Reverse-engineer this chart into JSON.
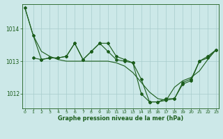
{
  "title": "Graphe pression niveau de la mer (hPa)",
  "background_color": "#cce8e8",
  "line_color": "#1a5c1a",
  "grid_color": "#a8cccc",
  "ylim": [
    1011.55,
    1014.75
  ],
  "yticks": [
    1012,
    1013,
    1014
  ],
  "xlim": [
    -0.3,
    23.3
  ],
  "xticks": [
    0,
    1,
    2,
    3,
    4,
    5,
    6,
    7,
    8,
    9,
    10,
    11,
    12,
    13,
    14,
    15,
    16,
    17,
    18,
    19,
    20,
    21,
    22,
    23
  ],
  "series1": {
    "x": [
      0,
      1,
      2,
      3,
      4,
      5,
      6,
      7,
      8,
      9,
      10,
      11,
      12,
      13,
      14,
      15,
      16,
      17,
      18,
      19,
      20,
      21,
      22,
      23
    ],
    "y": [
      1014.65,
      1013.8,
      1013.05,
      1013.1,
      1013.1,
      1013.15,
      1013.55,
      1013.05,
      1013.3,
      1013.55,
      1013.55,
      1013.15,
      1013.05,
      1012.95,
      1012.45,
      1011.75,
      1011.75,
      1011.8,
      1011.85,
      1012.3,
      1012.4,
      1013.0,
      1013.15,
      1013.35
    ]
  },
  "series2": {
    "x": [
      0,
      1,
      2,
      3,
      4,
      5,
      6,
      7,
      8,
      9,
      10,
      11,
      12,
      13,
      14,
      15,
      16,
      17,
      18,
      19,
      20,
      21,
      22,
      23
    ],
    "y": [
      1014.65,
      1013.8,
      1013.3,
      1013.15,
      1013.05,
      1013.0,
      1013.0,
      1013.0,
      1013.0,
      1013.0,
      1013.0,
      1012.95,
      1012.85,
      1012.65,
      1012.35,
      1012.05,
      1011.85,
      1011.8,
      1012.2,
      1012.4,
      1012.5,
      1012.7,
      1013.05,
      1013.35
    ]
  },
  "series3": {
    "x": [
      1,
      2,
      3,
      4,
      5,
      6,
      7,
      8,
      9,
      10,
      11,
      12,
      13,
      14,
      15,
      16,
      17,
      18,
      19,
      20,
      21,
      22,
      23
    ],
    "y": [
      1013.1,
      1013.05,
      1013.1,
      1013.1,
      1013.15,
      1013.55,
      1013.05,
      1013.3,
      1013.55,
      1013.3,
      1013.05,
      1013.0,
      1012.95,
      1012.0,
      1011.75,
      1011.75,
      1011.85,
      1011.85,
      1012.35,
      1012.45,
      1013.0,
      1013.1,
      1013.35
    ]
  }
}
